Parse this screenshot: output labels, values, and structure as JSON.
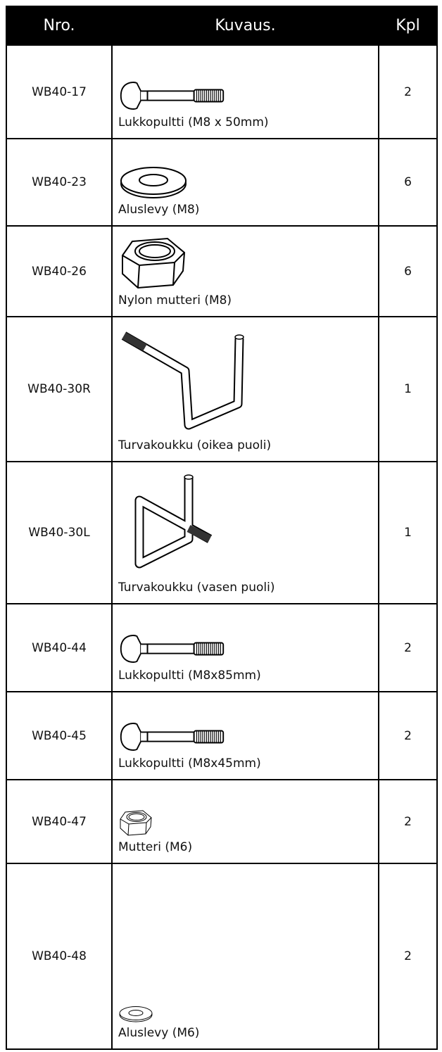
{
  "header": {
    "number": "Nro.",
    "description": "Kuvaus.",
    "quantity": "Kpl"
  },
  "table": {
    "rows": [
      [
        "WB40-17",
        "Lukkopultti (M8 x 50mm)",
        2
      ],
      [
        "WB40-23",
        "Aluslevy (M8)",
        6
      ],
      [
        "WB40-26",
        "Nylon mutteri (M8)",
        6
      ],
      [
        "WB40-30R",
        "Turvakoukku (oikea puoli)",
        1
      ],
      [
        "WB40-30L",
        "Turvakoukku (vasen puoli)",
        1
      ],
      [
        "WB40-44",
        "Lukkopultti (M8x85mm)",
        2
      ],
      [
        "WB40-45",
        "Lukkopultti (M8x45mm)",
        2
      ],
      [
        "WB40-47",
        "Mutteri (M6)",
        2
      ],
      [
        "WB40-48",
        "Aluslevy (M6)",
        2
      ]
    ]
  }
}
